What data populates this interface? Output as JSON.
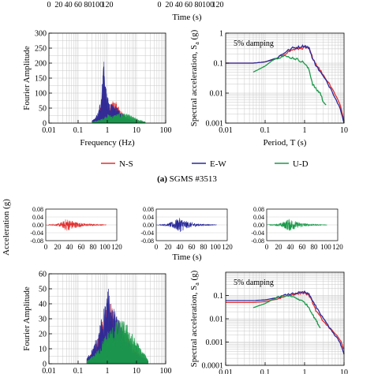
{
  "colors": {
    "ns": "#e03030",
    "ew": "#2a2a9a",
    "ud": "#1a9a4a",
    "grid": "#c8c8c8"
  },
  "top_strip": {
    "ticks_left": [
      "0",
      "20",
      "40",
      "60",
      "80",
      "100",
      "120"
    ],
    "ticks_right": [
      "0",
      "20",
      "40",
      "60",
      "80",
      "100",
      "120"
    ],
    "xlabel": "Time (s)"
  },
  "legend": {
    "items": [
      "N-S",
      "E-W",
      "U-D"
    ]
  },
  "caption_a": {
    "bold": "(a)",
    "text": " SGMS #3513"
  },
  "accel_row": {
    "ylabel": "Acceleration (g)",
    "yticks": [
      "0.08",
      "0.04",
      "0.00",
      "-0.04",
      "-0.08"
    ],
    "xticks": [
      "0",
      "20",
      "40",
      "60",
      "80",
      "100",
      "120"
    ],
    "xlabel": "Time (s)"
  },
  "chart_data": [
    {
      "type": "area",
      "panel": "a-fourier",
      "title": "",
      "xlabel": "Frequency (Hz)",
      "ylabel": "Fourier Amplitude",
      "xscale": "log",
      "xlim": [
        0.01,
        100
      ],
      "ylim": [
        0,
        300
      ],
      "xticks": [
        "0.01",
        "0.1",
        "1",
        "10",
        "100"
      ],
      "yticks": [
        "0",
        "50",
        "100",
        "150",
        "200",
        "250",
        "300"
      ],
      "series": [
        {
          "name": "N-S",
          "x": [
            0.3,
            0.4,
            0.5,
            0.6,
            0.7,
            0.8,
            0.9,
            1.0,
            1.2,
            1.5,
            2.0,
            3.0,
            5.0,
            10.0
          ],
          "y": [
            8,
            15,
            30,
            60,
            120,
            155,
            80,
            60,
            50,
            75,
            70,
            40,
            15,
            4
          ]
        },
        {
          "name": "E-W",
          "x": [
            0.3,
            0.4,
            0.5,
            0.6,
            0.7,
            0.75,
            0.8,
            0.9,
            1.0,
            1.2,
            1.5,
            2.0,
            3.0,
            5.0,
            10.0
          ],
          "y": [
            8,
            20,
            40,
            90,
            160,
            250,
            180,
            120,
            90,
            70,
            60,
            55,
            35,
            15,
            4
          ]
        },
        {
          "name": "U-D",
          "x": [
            0.3,
            0.5,
            0.8,
            1.0,
            1.5,
            2.0,
            3.0,
            5.0,
            8.0,
            12.0,
            20.0
          ],
          "y": [
            5,
            10,
            20,
            30,
            25,
            30,
            35,
            30,
            20,
            12,
            4
          ]
        }
      ],
      "grid": true
    },
    {
      "type": "line",
      "panel": "a-spectral",
      "annotation": "5% damping",
      "xlabel": "Period, T (s)",
      "ylabel": "Spectral acceleration, S",
      "ylabel_sub": "a",
      "ylabel_unit": " (g)",
      "xscale": "log",
      "yscale": "log",
      "xlim": [
        0.01,
        10
      ],
      "ylim": [
        0.001,
        1
      ],
      "xticks": [
        "0.01",
        "0.1",
        "1",
        "10"
      ],
      "yticks": [
        "1",
        "0.1",
        "0.01",
        "0.001"
      ],
      "series": [
        {
          "name": "N-S",
          "x": [
            0.01,
            0.05,
            0.1,
            0.2,
            0.3,
            0.5,
            0.7,
            1.0,
            1.3,
            1.6,
            2.0,
            3.0,
            5.0,
            8.0,
            10.0
          ],
          "y": [
            0.1,
            0.1,
            0.11,
            0.14,
            0.2,
            0.28,
            0.3,
            0.33,
            0.3,
            0.15,
            0.09,
            0.04,
            0.015,
            0.004,
            0.0012
          ]
        },
        {
          "name": "E-W",
          "x": [
            0.01,
            0.05,
            0.1,
            0.2,
            0.3,
            0.5,
            0.7,
            1.0,
            1.3,
            1.6,
            2.0,
            3.0,
            5.0,
            8.0,
            10.0
          ],
          "y": [
            0.1,
            0.1,
            0.11,
            0.15,
            0.22,
            0.32,
            0.34,
            0.38,
            0.32,
            0.14,
            0.08,
            0.035,
            0.012,
            0.003,
            0.001
          ]
        },
        {
          "name": "U-D",
          "x": [
            0.05,
            0.1,
            0.15,
            0.2,
            0.3,
            0.5,
            0.7,
            1.0,
            1.3,
            1.6,
            2.0,
            2.5,
            3.0,
            3.5
          ],
          "y": [
            0.05,
            0.08,
            0.12,
            0.15,
            0.17,
            0.15,
            0.13,
            0.1,
            0.06,
            0.02,
            0.013,
            0.01,
            0.005,
            0.004
          ]
        }
      ],
      "grid": true
    },
    {
      "type": "line",
      "panel": "b-acceleration",
      "ylim": [
        -0.08,
        0.08
      ],
      "xlim": [
        0,
        120
      ],
      "series": [
        {
          "name": "N-S",
          "x": [
            10,
            20,
            30,
            35,
            40,
            45,
            50,
            60,
            70,
            80,
            90,
            100
          ],
          "amplitude": [
            0.002,
            0.006,
            0.018,
            0.034,
            0.026,
            0.022,
            0.016,
            0.01,
            0.006,
            0.004,
            0.002,
            0.001
          ]
        },
        {
          "name": "E-W",
          "x": [
            10,
            20,
            30,
            35,
            40,
            45,
            50,
            60,
            70,
            80,
            90,
            100
          ],
          "amplitude": [
            0.002,
            0.007,
            0.02,
            0.03,
            0.037,
            0.03,
            0.02,
            0.012,
            0.007,
            0.004,
            0.002,
            0.001
          ]
        },
        {
          "name": "U-D",
          "x": [
            10,
            20,
            30,
            35,
            40,
            45,
            50,
            60,
            70,
            80,
            90,
            100
          ],
          "amplitude": [
            0.002,
            0.006,
            0.018,
            0.028,
            0.032,
            0.024,
            0.016,
            0.01,
            0.006,
            0.003,
            0.002,
            0.001
          ]
        }
      ]
    },
    {
      "type": "area",
      "panel": "b-fourier",
      "xlabel": "",
      "ylabel": "Fourier Amplitude",
      "xscale": "log",
      "xlim": [
        0.01,
        100
      ],
      "ylim": [
        0,
        60
      ],
      "xticks": [
        "0.01",
        "0.1",
        "1",
        "10",
        "100"
      ],
      "yticks": [
        "0",
        "10",
        "20",
        "30",
        "40",
        "50",
        "60"
      ],
      "series": [
        {
          "name": "N-S",
          "x": [
            0.2,
            0.3,
            0.5,
            0.7,
            1.0,
            1.3,
            2.0,
            3.0,
            5.0,
            8.0,
            15.0,
            25.0
          ],
          "y": [
            3,
            8,
            18,
            30,
            45,
            40,
            32,
            25,
            18,
            10,
            5,
            2
          ]
        },
        {
          "name": "E-W",
          "x": [
            0.2,
            0.3,
            0.5,
            0.7,
            1.0,
            1.1,
            1.3,
            2.0,
            3.0,
            5.0,
            8.0,
            15.0,
            25.0
          ],
          "y": [
            4,
            10,
            22,
            35,
            48,
            51,
            42,
            33,
            24,
            16,
            9,
            4,
            2
          ]
        },
        {
          "name": "U-D",
          "x": [
            0.2,
            0.3,
            0.5,
            0.7,
            1.0,
            1.5,
            2.0,
            3.0,
            5.0,
            8.0,
            15.0,
            25.0
          ],
          "y": [
            2,
            5,
            10,
            16,
            22,
            25,
            28,
            30,
            26,
            18,
            9,
            3
          ]
        }
      ],
      "grid": true
    },
    {
      "type": "line",
      "panel": "b-spectral",
      "annotation": "5% damping",
      "ylabel": "Spectral acceleration, S",
      "ylabel_sub": "a",
      "ylabel_unit": " (g)",
      "xscale": "log",
      "yscale": "log",
      "xlim": [
        0.01,
        10
      ],
      "ylim": [
        0.0001,
        1
      ],
      "xticks": [
        "0.01",
        "0.1",
        "1",
        "10"
      ],
      "yticks": [
        "0.1",
        "0.01",
        "0.001",
        "0.0001"
      ],
      "series": [
        {
          "name": "N-S",
          "x": [
            0.01,
            0.05,
            0.1,
            0.2,
            0.3,
            0.5,
            0.7,
            1.0,
            1.3,
            1.6,
            2.0,
            3.0,
            5.0,
            8.0,
            10.0
          ],
          "y": [
            0.05,
            0.05,
            0.055,
            0.07,
            0.09,
            0.11,
            0.12,
            0.13,
            0.1,
            0.05,
            0.02,
            0.008,
            0.003,
            0.0012,
            0.0005
          ]
        },
        {
          "name": "E-W",
          "x": [
            0.01,
            0.05,
            0.1,
            0.2,
            0.3,
            0.5,
            0.7,
            1.0,
            1.3,
            1.6,
            2.0,
            3.0,
            5.0,
            8.0,
            10.0
          ],
          "y": [
            0.06,
            0.06,
            0.065,
            0.08,
            0.1,
            0.12,
            0.13,
            0.14,
            0.11,
            0.06,
            0.03,
            0.01,
            0.003,
            0.0009,
            0.0003
          ]
        },
        {
          "name": "U-D",
          "x": [
            0.05,
            0.1,
            0.15,
            0.2,
            0.3,
            0.5,
            0.7,
            1.0,
            1.3,
            1.6,
            2.0,
            2.5
          ],
          "y": [
            0.03,
            0.045,
            0.065,
            0.08,
            0.1,
            0.09,
            0.07,
            0.05,
            0.03,
            0.015,
            0.008,
            0.004
          ]
        }
      ],
      "grid": true
    }
  ]
}
